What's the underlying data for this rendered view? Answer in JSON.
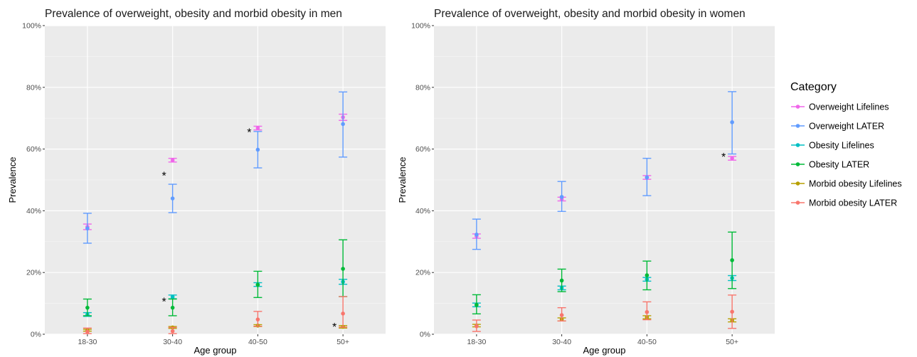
{
  "chart_data": [
    {
      "type": "scatter",
      "title": "Prevalence of overweight, obesity and morbid obesity in men",
      "xlabel": "Age group",
      "ylabel": "Prevalence",
      "categories": [
        "18-30",
        "30-40",
        "40-50",
        "50+"
      ],
      "ylim": [
        0,
        100
      ],
      "yticks": [
        "0%",
        "20%",
        "40%",
        "60%",
        "80%",
        "100%"
      ],
      "grid": true,
      "series": [
        {
          "name": "Overweight Lifelines",
          "color": "#F066EA",
          "points": [
            {
              "y": 34.8,
              "low": 33.9,
              "high": 35.7
            },
            {
              "y": 56.4,
              "low": 55.8,
              "high": 57.0
            },
            {
              "y": 66.8,
              "low": 66.2,
              "high": 67.4
            },
            {
              "y": 70.3,
              "low": 69.3,
              "high": 71.3
            }
          ]
        },
        {
          "name": "Overweight LATER",
          "color": "#619CFF",
          "points": [
            {
              "y": 34.3,
              "low": 29.5,
              "high": 39.2
            },
            {
              "y": 44.0,
              "low": 39.4,
              "high": 48.6
            },
            {
              "y": 59.8,
              "low": 53.9,
              "high": 65.7
            },
            {
              "y": 68.1,
              "low": 57.4,
              "high": 78.5
            }
          ]
        },
        {
          "name": "Obesity Lifelines",
          "color": "#00BFC4",
          "points": [
            {
              "y": 6.4,
              "low": 5.8,
              "high": 7.0
            },
            {
              "y": 12.1,
              "low": 11.5,
              "high": 12.7
            },
            {
              "y": 16.1,
              "low": 15.5,
              "high": 16.7
            },
            {
              "y": 17.0,
              "low": 16.2,
              "high": 17.8
            }
          ]
        },
        {
          "name": "Obesity LATER",
          "color": "#00BA38",
          "points": [
            {
              "y": 8.6,
              "low": 6.0,
              "high": 11.4
            },
            {
              "y": 8.6,
              "low": 6.0,
              "high": 11.4
            },
            {
              "y": 16.0,
              "low": 11.9,
              "high": 20.4
            },
            {
              "y": 21.2,
              "low": 12.2,
              "high": 30.6
            }
          ]
        },
        {
          "name": "Morbid obesity Lifelines",
          "color": "#B79F00",
          "points": [
            {
              "y": 1.3,
              "low": 1.0,
              "high": 1.6
            },
            {
              "y": 2.2,
              "low": 1.9,
              "high": 2.5
            },
            {
              "y": 2.8,
              "low": 2.5,
              "high": 3.1
            },
            {
              "y": 2.4,
              "low": 2.0,
              "high": 2.8
            }
          ]
        },
        {
          "name": "Morbid obesity LATER",
          "color": "#F8766D",
          "points": [
            {
              "y": 0.8,
              "low": 0.2,
              "high": 2.0
            },
            {
              "y": 1.0,
              "low": 0.2,
              "high": 2.2
            },
            {
              "y": 4.8,
              "low": 2.6,
              "high": 7.4
            },
            {
              "y": 6.7,
              "low": 2.3,
              "high": 12.2
            }
          ]
        }
      ],
      "annotations": [
        {
          "text": "*",
          "x": "30-40",
          "y": 51.5
        },
        {
          "text": "*",
          "x": "30-40",
          "y": 10.7
        },
        {
          "text": "*",
          "x": "40-50",
          "y": 65.5
        },
        {
          "text": "*",
          "x": "50+",
          "y": 2.5
        }
      ]
    },
    {
      "type": "scatter",
      "title": "Prevalence of overweight, obesity and morbid obesity in women",
      "xlabel": "Age group",
      "ylabel": "Prevalence",
      "categories": [
        "18-30",
        "30-40",
        "40-50",
        "50+"
      ],
      "ylim": [
        0,
        100
      ],
      "yticks": [
        "0%",
        "20%",
        "40%",
        "60%",
        "80%",
        "100%"
      ],
      "grid": true,
      "series": [
        {
          "name": "Overweight Lifelines",
          "color": "#F066EA",
          "points": [
            {
              "y": 31.8,
              "low": 31.1,
              "high": 32.5
            },
            {
              "y": 43.8,
              "low": 43.2,
              "high": 44.4
            },
            {
              "y": 50.8,
              "low": 50.2,
              "high": 51.4
            },
            {
              "y": 57.0,
              "low": 56.4,
              "high": 57.6
            }
          ]
        },
        {
          "name": "Overweight LATER",
          "color": "#619CFF",
          "points": [
            {
              "y": 32.3,
              "low": 27.5,
              "high": 37.3
            },
            {
              "y": 44.5,
              "low": 39.8,
              "high": 49.5
            },
            {
              "y": 50.8,
              "low": 44.9,
              "high": 57.0
            },
            {
              "y": 68.7,
              "low": 58.4,
              "high": 78.6
            }
          ]
        },
        {
          "name": "Obesity Lifelines",
          "color": "#00BFC4",
          "points": [
            {
              "y": 9.5,
              "low": 8.9,
              "high": 10.1
            },
            {
              "y": 15.0,
              "low": 14.4,
              "high": 15.6
            },
            {
              "y": 17.8,
              "low": 17.2,
              "high": 18.4
            },
            {
              "y": 18.2,
              "low": 17.4,
              "high": 19.0
            }
          ]
        },
        {
          "name": "Obesity LATER",
          "color": "#00BA38",
          "points": [
            {
              "y": 9.5,
              "low": 6.6,
              "high": 12.8
            },
            {
              "y": 17.4,
              "low": 13.8,
              "high": 21.1
            },
            {
              "y": 19.1,
              "low": 14.4,
              "high": 23.7
            },
            {
              "y": 24.0,
              "low": 14.8,
              "high": 33.1
            }
          ]
        },
        {
          "name": "Morbid obesity Lifelines",
          "color": "#B79F00",
          "points": [
            {
              "y": 2.8,
              "low": 2.4,
              "high": 3.2
            },
            {
              "y": 4.8,
              "low": 4.3,
              "high": 5.3
            },
            {
              "y": 5.5,
              "low": 5.0,
              "high": 6.0
            },
            {
              "y": 4.5,
              "low": 4.0,
              "high": 5.0
            }
          ]
        },
        {
          "name": "Morbid obesity LATER",
          "color": "#F8766D",
          "points": [
            {
              "y": 2.6,
              "low": 0.9,
              "high": 4.6
            },
            {
              "y": 6.2,
              "low": 4.3,
              "high": 8.6
            },
            {
              "y": 7.2,
              "low": 4.7,
              "high": 10.5
            },
            {
              "y": 7.3,
              "low": 1.9,
              "high": 12.7
            }
          ]
        }
      ],
      "annotations": [
        {
          "text": "*",
          "x": "50+",
          "y": 57.6
        }
      ]
    }
  ],
  "legend": {
    "title": "Category",
    "position": "right",
    "items": [
      {
        "label": "Overweight Lifelines",
        "color": "#F066EA"
      },
      {
        "label": "Overweight LATER",
        "color": "#619CFF"
      },
      {
        "label": "Obesity Lifelines",
        "color": "#00BFC4"
      },
      {
        "label": "Obesity LATER",
        "color": "#00BA38"
      },
      {
        "label": "Morbid obesity Lifelines",
        "color": "#B79F00"
      },
      {
        "label": "Morbid obesity LATER",
        "color": "#F8766D"
      }
    ]
  }
}
